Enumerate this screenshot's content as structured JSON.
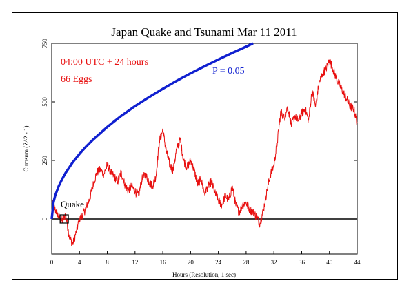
{
  "chart_data": {
    "type": "line",
    "title": "Japan Quake and Tsunami Mar 11 2011",
    "xlabel": "Hours (Resolution, 1 sec)",
    "ylabel": "Cumsum (Z^2 - 1)",
    "xlim": [
      0,
      44
    ],
    "ylim": [
      -150,
      750
    ],
    "x_ticks": [
      0,
      4,
      8,
      12,
      16,
      20,
      24,
      28,
      32,
      36,
      40,
      44
    ],
    "y_ticks": [
      0,
      250,
      500,
      750
    ],
    "grid": false,
    "annotations": [
      {
        "text": "04:00 UTC + 24 hours",
        "color": "#e81010"
      },
      {
        "text": "66 Eggs",
        "color": "#e81010"
      },
      {
        "text": "P = 0.05",
        "color": "#1020d0"
      },
      {
        "text": "Quake",
        "color": "#000000"
      }
    ],
    "quake_marker": {
      "x": 1.8,
      "y": 0
    },
    "series": [
      {
        "color": "#e81010",
        "x": [
          0,
          0.5,
          1.0,
          1.5,
          2.0,
          2.5,
          3.0,
          3.5,
          4.0,
          4.5,
          5.0,
          5.5,
          6.0,
          6.5,
          7.0,
          7.5,
          8.0,
          8.5,
          9.0,
          9.5,
          10.0,
          10.5,
          11.0,
          11.5,
          12.0,
          12.5,
          13.0,
          13.5,
          14.0,
          14.5,
          15.0,
          15.5,
          16.0,
          16.5,
          17.0,
          17.5,
          18.0,
          18.5,
          19.0,
          19.5,
          20.0,
          20.5,
          21.0,
          21.5,
          22.0,
          22.5,
          23.0,
          23.5,
          24.0,
          24.5,
          25.0,
          25.5,
          26.0,
          26.5,
          27.0,
          27.5,
          28.0,
          28.5,
          29.0,
          29.5,
          30.0,
          30.5,
          31.0,
          31.5,
          32.0,
          32.5,
          33.0,
          33.5,
          34.0,
          34.5,
          35.0,
          35.5,
          36.0,
          36.5,
          37.0,
          37.5,
          38.0,
          38.5,
          39.0,
          39.5,
          40.0,
          40.5,
          41.0,
          41.5,
          42.0,
          42.5,
          43.0,
          43.5,
          44.0
        ],
        "y": [
          70,
          40,
          10,
          -10,
          20,
          -70,
          -110,
          -60,
          0,
          20,
          50,
          90,
          150,
          200,
          210,
          190,
          230,
          200,
          180,
          160,
          200,
          150,
          120,
          140,
          120,
          100,
          170,
          190,
          160,
          140,
          180,
          330,
          380,
          290,
          230,
          210,
          300,
          340,
          250,
          220,
          250,
          210,
          150,
          170,
          110,
          140,
          160,
          110,
          80,
          60,
          100,
          80,
          140,
          60,
          30,
          60,
          70,
          40,
          30,
          10,
          -20,
          40,
          120,
          190,
          230,
          330,
          460,
          430,
          480,
          400,
          440,
          420,
          450,
          470,
          420,
          550,
          480,
          580,
          620,
          640,
          680,
          640,
          600,
          570,
          540,
          510,
          480,
          470,
          410
        ]
      },
      {
        "name": "P = 0.05",
        "color": "#1020d0",
        "x": [
          0,
          0.25,
          0.5,
          1,
          1.5,
          2,
          3,
          4,
          5,
          6,
          8,
          10,
          12,
          14,
          16,
          18,
          20,
          22,
          24,
          26,
          28,
          29
        ],
        "y": [
          0,
          70,
          100,
          140,
          170,
          197,
          241,
          278,
          311,
          340,
          393,
          440,
          482,
          520,
          556,
          590,
          622,
          652,
          681,
          709,
          736,
          750
        ]
      }
    ]
  }
}
